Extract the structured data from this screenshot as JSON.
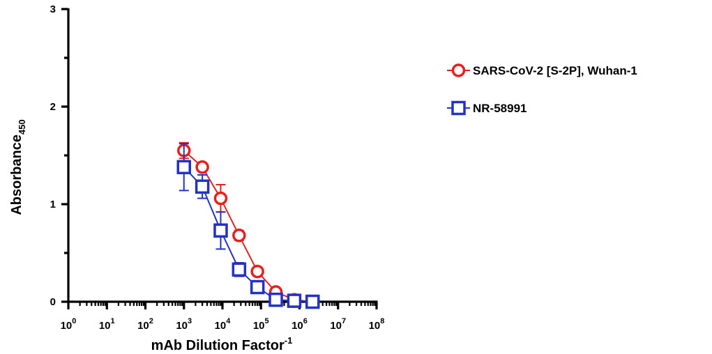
{
  "chart_data": {
    "type": "scatter",
    "x_scale": "log",
    "xlim": [
      1,
      100000000
    ],
    "ylim": [
      0,
      3
    ],
    "xlabel_main": "mAb Dilution Factor",
    "xlabel_sup": "-1",
    "ylabel_main": "Absorbance",
    "ylabel_sub": "450",
    "x_tick_exponents": [
      "0",
      "1",
      "2",
      "3",
      "4",
      "5",
      "6",
      "7",
      "8"
    ],
    "y_ticks": [
      0,
      1,
      2,
      3
    ],
    "legend_position": "right",
    "grid": false,
    "series": [
      {
        "name": "SARS-CoV-2 [S-2P], Wuhan-1",
        "color": "#e8201c",
        "marker": "circle",
        "points": [
          {
            "x": 1000,
            "y": 1.55,
            "err": 0.08
          },
          {
            "x": 3000,
            "y": 1.38,
            "err": 0.03
          },
          {
            "x": 9000,
            "y": 1.06,
            "err": 0.14
          },
          {
            "x": 27000,
            "y": 0.68,
            "err": 0.05
          },
          {
            "x": 81000,
            "y": 0.31,
            "err": 0.03
          },
          {
            "x": 243000,
            "y": 0.1,
            "err": 0.02
          },
          {
            "x": 729000,
            "y": 0.02,
            "err": 0.01
          },
          {
            "x": 2187000,
            "y": 0.0,
            "err": 0.01
          }
        ]
      },
      {
        "name": "NR-58991",
        "color": "#2232c8",
        "marker": "square",
        "points": [
          {
            "x": 1000,
            "y": 1.38,
            "err": 0.24
          },
          {
            "x": 3000,
            "y": 1.18,
            "err": 0.12
          },
          {
            "x": 9000,
            "y": 0.73,
            "err": 0.19
          },
          {
            "x": 27000,
            "y": 0.33,
            "err": 0.07
          },
          {
            "x": 81000,
            "y": 0.15,
            "err": 0.02
          },
          {
            "x": 243000,
            "y": 0.02,
            "err": 0.01
          },
          {
            "x": 729000,
            "y": 0.01,
            "err": 0.01
          },
          {
            "x": 2187000,
            "y": 0.0,
            "err": 0.01
          }
        ]
      }
    ]
  }
}
